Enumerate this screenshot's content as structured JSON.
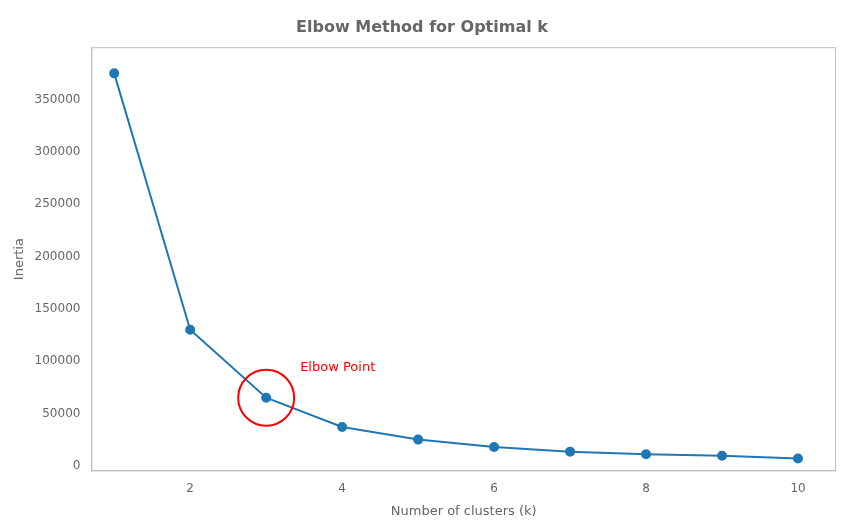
{
  "chart_data": {
    "type": "line",
    "title": "Elbow Method for Optimal k",
    "xlabel": "Number of clusters (k)",
    "ylabel": "Inertia",
    "x": [
      1,
      2,
      3,
      4,
      5,
      6,
      7,
      8,
      9,
      10
    ],
    "values": [
      375000,
      130000,
      65000,
      37000,
      25000,
      18000,
      13500,
      11000,
      9500,
      7000
    ],
    "color": "#1f77b4",
    "marker": "circle",
    "xlim": [
      0.7,
      10.5
    ],
    "xticks": [
      2,
      4,
      6,
      8,
      10
    ],
    "ylim": [
      -5000,
      400000
    ],
    "yticks": [
      0,
      50000,
      100000,
      150000,
      200000,
      250000,
      300000,
      350000
    ],
    "grid": false,
    "annotations": [
      {
        "text": "Elbow Point",
        "x": 3,
        "y": 65000,
        "color": "red"
      }
    ]
  }
}
